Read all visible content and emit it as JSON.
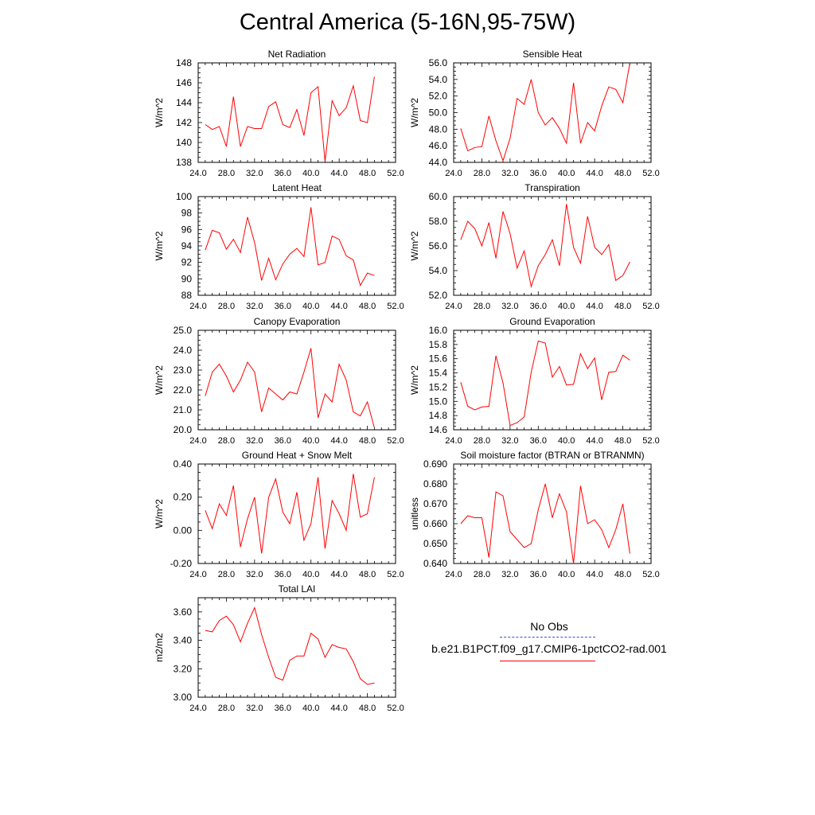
{
  "title": "Central America (5-16N,95-75W)",
  "colors": {
    "model": "#ff0000",
    "obs": "#3355cc",
    "axis": "#000000"
  },
  "legend": {
    "obs_label": "No Obs",
    "model_label": "b.e21.B1PCT.f09_g17.CMIP6-1pctCO2-rad.001"
  },
  "chart_data": [
    {
      "type": "line",
      "title": "Net Radiation",
      "ylabel": "W/m^2",
      "xlim": [
        24,
        52
      ],
      "ylim": [
        138,
        148
      ],
      "xticks": [
        "24.0",
        "28.0",
        "32.0",
        "36.0",
        "40.0",
        "44.0",
        "48.0",
        "52.0"
      ],
      "yticks": [
        "138",
        "140",
        "142",
        "144",
        "146",
        "148"
      ],
      "series": [
        {
          "x": [
            25,
            26,
            27,
            28,
            29,
            30,
            31,
            32,
            33,
            34,
            35,
            36,
            37,
            38,
            39,
            40,
            41,
            42,
            43,
            44,
            45,
            46,
            47,
            48,
            49
          ],
          "values": [
            141.8,
            141.3,
            141.6,
            139.6,
            144.6,
            139.6,
            141.6,
            141.4,
            141.4,
            143.6,
            144.1,
            141.8,
            141.5,
            143.3,
            140.7,
            145.0,
            145.6,
            138.1,
            144.2,
            142.7,
            143.5,
            145.7,
            142.2,
            142.0,
            146.6
          ]
        }
      ]
    },
    {
      "type": "line",
      "title": "Sensible Heat",
      "ylabel": "W/m^2",
      "xlim": [
        24,
        52
      ],
      "ylim": [
        44,
        56
      ],
      "xticks": [
        "24.0",
        "28.0",
        "32.0",
        "36.0",
        "40.0",
        "44.0",
        "48.0",
        "52.0"
      ],
      "yticks": [
        "44.0",
        "46.0",
        "48.0",
        "50.0",
        "52.0",
        "54.0",
        "56.0"
      ],
      "series": [
        {
          "x": [
            25,
            26,
            27,
            28,
            29,
            30,
            31,
            32,
            33,
            34,
            35,
            36,
            37,
            38,
            39,
            40,
            41,
            42,
            43,
            44,
            45,
            46,
            47,
            48,
            49
          ],
          "values": [
            48.1,
            45.4,
            45.8,
            45.9,
            49.6,
            46.6,
            44.2,
            46.9,
            51.7,
            51.0,
            54.0,
            50.0,
            48.5,
            49.4,
            48.1,
            46.3,
            53.6,
            46.3,
            48.8,
            47.8,
            50.8,
            53.1,
            52.8,
            51.2,
            56.0
          ]
        }
      ]
    },
    {
      "type": "line",
      "title": "Latent Heat",
      "ylabel": "W/m^2",
      "xlim": [
        24,
        52
      ],
      "ylim": [
        88,
        100
      ],
      "xticks": [
        "24.0",
        "28.0",
        "32.0",
        "36.0",
        "40.0",
        "44.0",
        "48.0",
        "52.0"
      ],
      "yticks": [
        "88",
        "90",
        "92",
        "94",
        "96",
        "98",
        "100"
      ],
      "series": [
        {
          "x": [
            25,
            26,
            27,
            28,
            29,
            30,
            31,
            32,
            33,
            34,
            35,
            36,
            37,
            38,
            39,
            40,
            41,
            42,
            43,
            44,
            45,
            46,
            47,
            48,
            49
          ],
          "values": [
            93.5,
            95.9,
            95.6,
            93.6,
            94.8,
            93.2,
            97.5,
            94.4,
            89.8,
            92.5,
            89.9,
            91.8,
            93.0,
            93.7,
            92.7,
            98.7,
            91.7,
            92.0,
            95.2,
            94.8,
            92.8,
            92.3,
            89.2,
            90.7,
            90.4
          ]
        }
      ]
    },
    {
      "type": "line",
      "title": "Transpiration",
      "ylabel": "W/m^2",
      "xlim": [
        24,
        52
      ],
      "ylim": [
        52,
        60
      ],
      "xticks": [
        "24.0",
        "28.0",
        "32.0",
        "36.0",
        "40.0",
        "44.0",
        "48.0",
        "52.0"
      ],
      "yticks": [
        "52.0",
        "54.0",
        "56.0",
        "58.0",
        "60.0"
      ],
      "series": [
        {
          "x": [
            25,
            26,
            27,
            28,
            29,
            30,
            31,
            32,
            33,
            34,
            35,
            36,
            37,
            38,
            39,
            40,
            41,
            42,
            43,
            44,
            45,
            46,
            47,
            48,
            49
          ],
          "values": [
            56.5,
            58.0,
            57.4,
            56.0,
            57.9,
            55.0,
            58.8,
            57.0,
            54.2,
            55.6,
            52.7,
            54.4,
            55.3,
            56.5,
            54.4,
            59.4,
            55.9,
            54.6,
            58.4,
            55.9,
            55.3,
            56.1,
            53.2,
            53.6,
            54.7
          ]
        }
      ]
    },
    {
      "type": "line",
      "title": "Canopy Evaporation",
      "ylabel": "W/m^2",
      "xlim": [
        24,
        52
      ],
      "ylim": [
        20,
        25
      ],
      "xticks": [
        "24.0",
        "28.0",
        "32.0",
        "36.0",
        "40.0",
        "44.0",
        "48.0",
        "52.0"
      ],
      "yticks": [
        "20.0",
        "21.0",
        "22.0",
        "23.0",
        "24.0",
        "25.0"
      ],
      "series": [
        {
          "x": [
            25,
            26,
            27,
            28,
            29,
            30,
            31,
            32,
            33,
            34,
            35,
            36,
            37,
            38,
            39,
            40,
            41,
            42,
            43,
            44,
            45,
            46,
            47,
            48,
            49
          ],
          "values": [
            21.7,
            22.9,
            23.3,
            22.7,
            21.9,
            22.5,
            23.4,
            22.9,
            20.9,
            22.1,
            21.8,
            21.5,
            21.9,
            21.8,
            22.9,
            24.1,
            20.6,
            21.8,
            21.4,
            23.3,
            22.5,
            20.9,
            20.7,
            21.4,
            20.1
          ]
        }
      ]
    },
    {
      "type": "line",
      "title": "Ground Evaporation",
      "ylabel": "W/m^2",
      "xlim": [
        24,
        52
      ],
      "ylim": [
        14.6,
        16.0
      ],
      "xticks": [
        "24.0",
        "28.0",
        "32.0",
        "36.0",
        "40.0",
        "44.0",
        "48.0",
        "52.0"
      ],
      "yticks": [
        "14.6",
        "14.8",
        "15.0",
        "15.2",
        "15.4",
        "15.6",
        "15.8",
        "16.0"
      ],
      "series": [
        {
          "x": [
            25,
            26,
            27,
            28,
            29,
            30,
            31,
            32,
            33,
            34,
            35,
            36,
            37,
            38,
            39,
            40,
            41,
            42,
            43,
            44,
            45,
            46,
            47,
            48,
            49
          ],
          "values": [
            15.27,
            14.93,
            14.88,
            14.92,
            14.93,
            15.64,
            15.26,
            14.66,
            14.7,
            14.78,
            15.41,
            15.85,
            15.82,
            15.34,
            15.49,
            15.23,
            15.24,
            15.67,
            15.46,
            15.61,
            15.02,
            15.41,
            15.42,
            15.65,
            15.58
          ]
        }
      ]
    },
    {
      "type": "line",
      "title": "Ground Heat + Snow Melt",
      "ylabel": "W/m^2",
      "xlim": [
        24,
        52
      ],
      "ylim": [
        -0.2,
        0.4
      ],
      "xticks": [
        "24.0",
        "28.0",
        "32.0",
        "36.0",
        "40.0",
        "44.0",
        "48.0",
        "52.0"
      ],
      "yticks": [
        "-0.20",
        "0.00",
        "0.20",
        "0.40"
      ],
      "series": [
        {
          "x": [
            25,
            26,
            27,
            28,
            29,
            30,
            31,
            32,
            33,
            34,
            35,
            36,
            37,
            38,
            39,
            40,
            41,
            42,
            43,
            44,
            45,
            46,
            47,
            48,
            49
          ],
          "values": [
            0.12,
            0.01,
            0.16,
            0.09,
            0.27,
            -0.1,
            0.07,
            0.2,
            -0.14,
            0.2,
            0.31,
            0.11,
            0.04,
            0.23,
            -0.06,
            0.04,
            0.32,
            -0.11,
            0.18,
            0.1,
            0.0,
            0.34,
            0.08,
            0.1,
            0.32
          ]
        }
      ]
    },
    {
      "type": "line",
      "title": "Soil moisture factor (BTRAN or BTRANMN)",
      "ylabel": "unitless",
      "xlim": [
        24,
        52
      ],
      "ylim": [
        0.64,
        0.69
      ],
      "xticks": [
        "24.0",
        "28.0",
        "32.0",
        "36.0",
        "40.0",
        "44.0",
        "48.0",
        "52.0"
      ],
      "yticks": [
        "0.640",
        "0.650",
        "0.660",
        "0.670",
        "0.680",
        "0.690"
      ],
      "series": [
        {
          "x": [
            25,
            26,
            27,
            28,
            29,
            30,
            31,
            32,
            33,
            34,
            35,
            36,
            37,
            38,
            39,
            40,
            41,
            42,
            43,
            44,
            45,
            46,
            47,
            48,
            49
          ],
          "values": [
            0.66,
            0.664,
            0.663,
            0.663,
            0.643,
            0.676,
            0.674,
            0.656,
            0.652,
            0.648,
            0.65,
            0.667,
            0.68,
            0.663,
            0.675,
            0.666,
            0.64,
            0.679,
            0.66,
            0.662,
            0.657,
            0.648,
            0.657,
            0.67,
            0.645
          ]
        }
      ]
    },
    {
      "type": "line",
      "title": "Total LAI",
      "ylabel": "m2/m2",
      "xlim": [
        24,
        52
      ],
      "ylim": [
        3.0,
        3.7
      ],
      "xticks": [
        "24.0",
        "28.0",
        "32.0",
        "36.0",
        "40.0",
        "44.0",
        "48.0",
        "52.0"
      ],
      "yticks": [
        "3.00",
        "3.20",
        "3.40",
        "3.60"
      ],
      "series": [
        {
          "x": [
            25,
            26,
            27,
            28,
            29,
            30,
            31,
            32,
            33,
            34,
            35,
            36,
            37,
            38,
            39,
            40,
            41,
            42,
            43,
            44,
            45,
            46,
            47,
            48,
            49
          ],
          "values": [
            3.47,
            3.46,
            3.54,
            3.57,
            3.51,
            3.39,
            3.52,
            3.63,
            3.44,
            3.28,
            3.14,
            3.12,
            3.26,
            3.29,
            3.29,
            3.45,
            3.41,
            3.28,
            3.37,
            3.35,
            3.34,
            3.25,
            3.13,
            3.09,
            3.1
          ]
        }
      ]
    }
  ]
}
